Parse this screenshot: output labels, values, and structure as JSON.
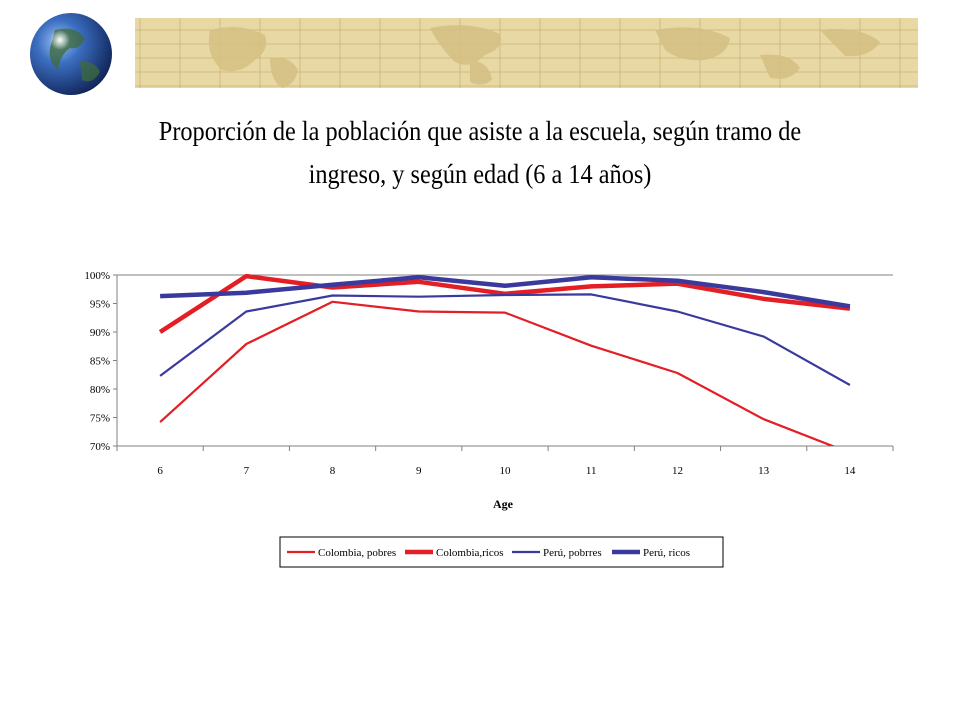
{
  "slide": {
    "title_line1": "Proporción de la población que asiste a la escuela, según tramo de",
    "title_line2": "ingreso, y según edad (6 a 14 años)"
  },
  "colors": {
    "banner_bg": "#e8d9a4",
    "banner_lines": "#c8b27a",
    "red": "#e31e24",
    "blue": "#3a3a9e",
    "axis": "#808080"
  },
  "chart_data": {
    "type": "line",
    "xlabel": "Age",
    "ylabel": "",
    "ylim": [
      0.7,
      1.0
    ],
    "yticks": [
      "70%",
      "75%",
      "80%",
      "85%",
      "90%",
      "95%",
      "100%"
    ],
    "categories": [
      "6",
      "7",
      "8",
      "9",
      "10",
      "11",
      "12",
      "13",
      "14"
    ],
    "legend_position": "bottom",
    "series": [
      {
        "name": "Colombia, pobres",
        "color": "#e31e24",
        "width": 2.2,
        "values": [
          0.742,
          0.879,
          0.953,
          0.936,
          0.934,
          0.876,
          0.828,
          0.747,
          0.688
        ]
      },
      {
        "name": "Colombia,ricos",
        "color": "#e31e24",
        "width": 4.5,
        "values": [
          0.9,
          0.998,
          0.978,
          0.988,
          0.967,
          0.98,
          0.985,
          0.958,
          0.941
        ]
      },
      {
        "name": "Perú, pobrres",
        "color": "#3a3a9e",
        "width": 2.2,
        "values": [
          0.823,
          0.936,
          0.964,
          0.962,
          0.965,
          0.966,
          0.936,
          0.892,
          0.807
        ]
      },
      {
        "name": "Perú, ricos",
        "color": "#3a3a9e",
        "width": 4.5,
        "values": [
          0.963,
          0.969,
          0.983,
          0.996,
          0.981,
          0.996,
          0.99,
          0.97,
          0.945
        ]
      }
    ]
  }
}
